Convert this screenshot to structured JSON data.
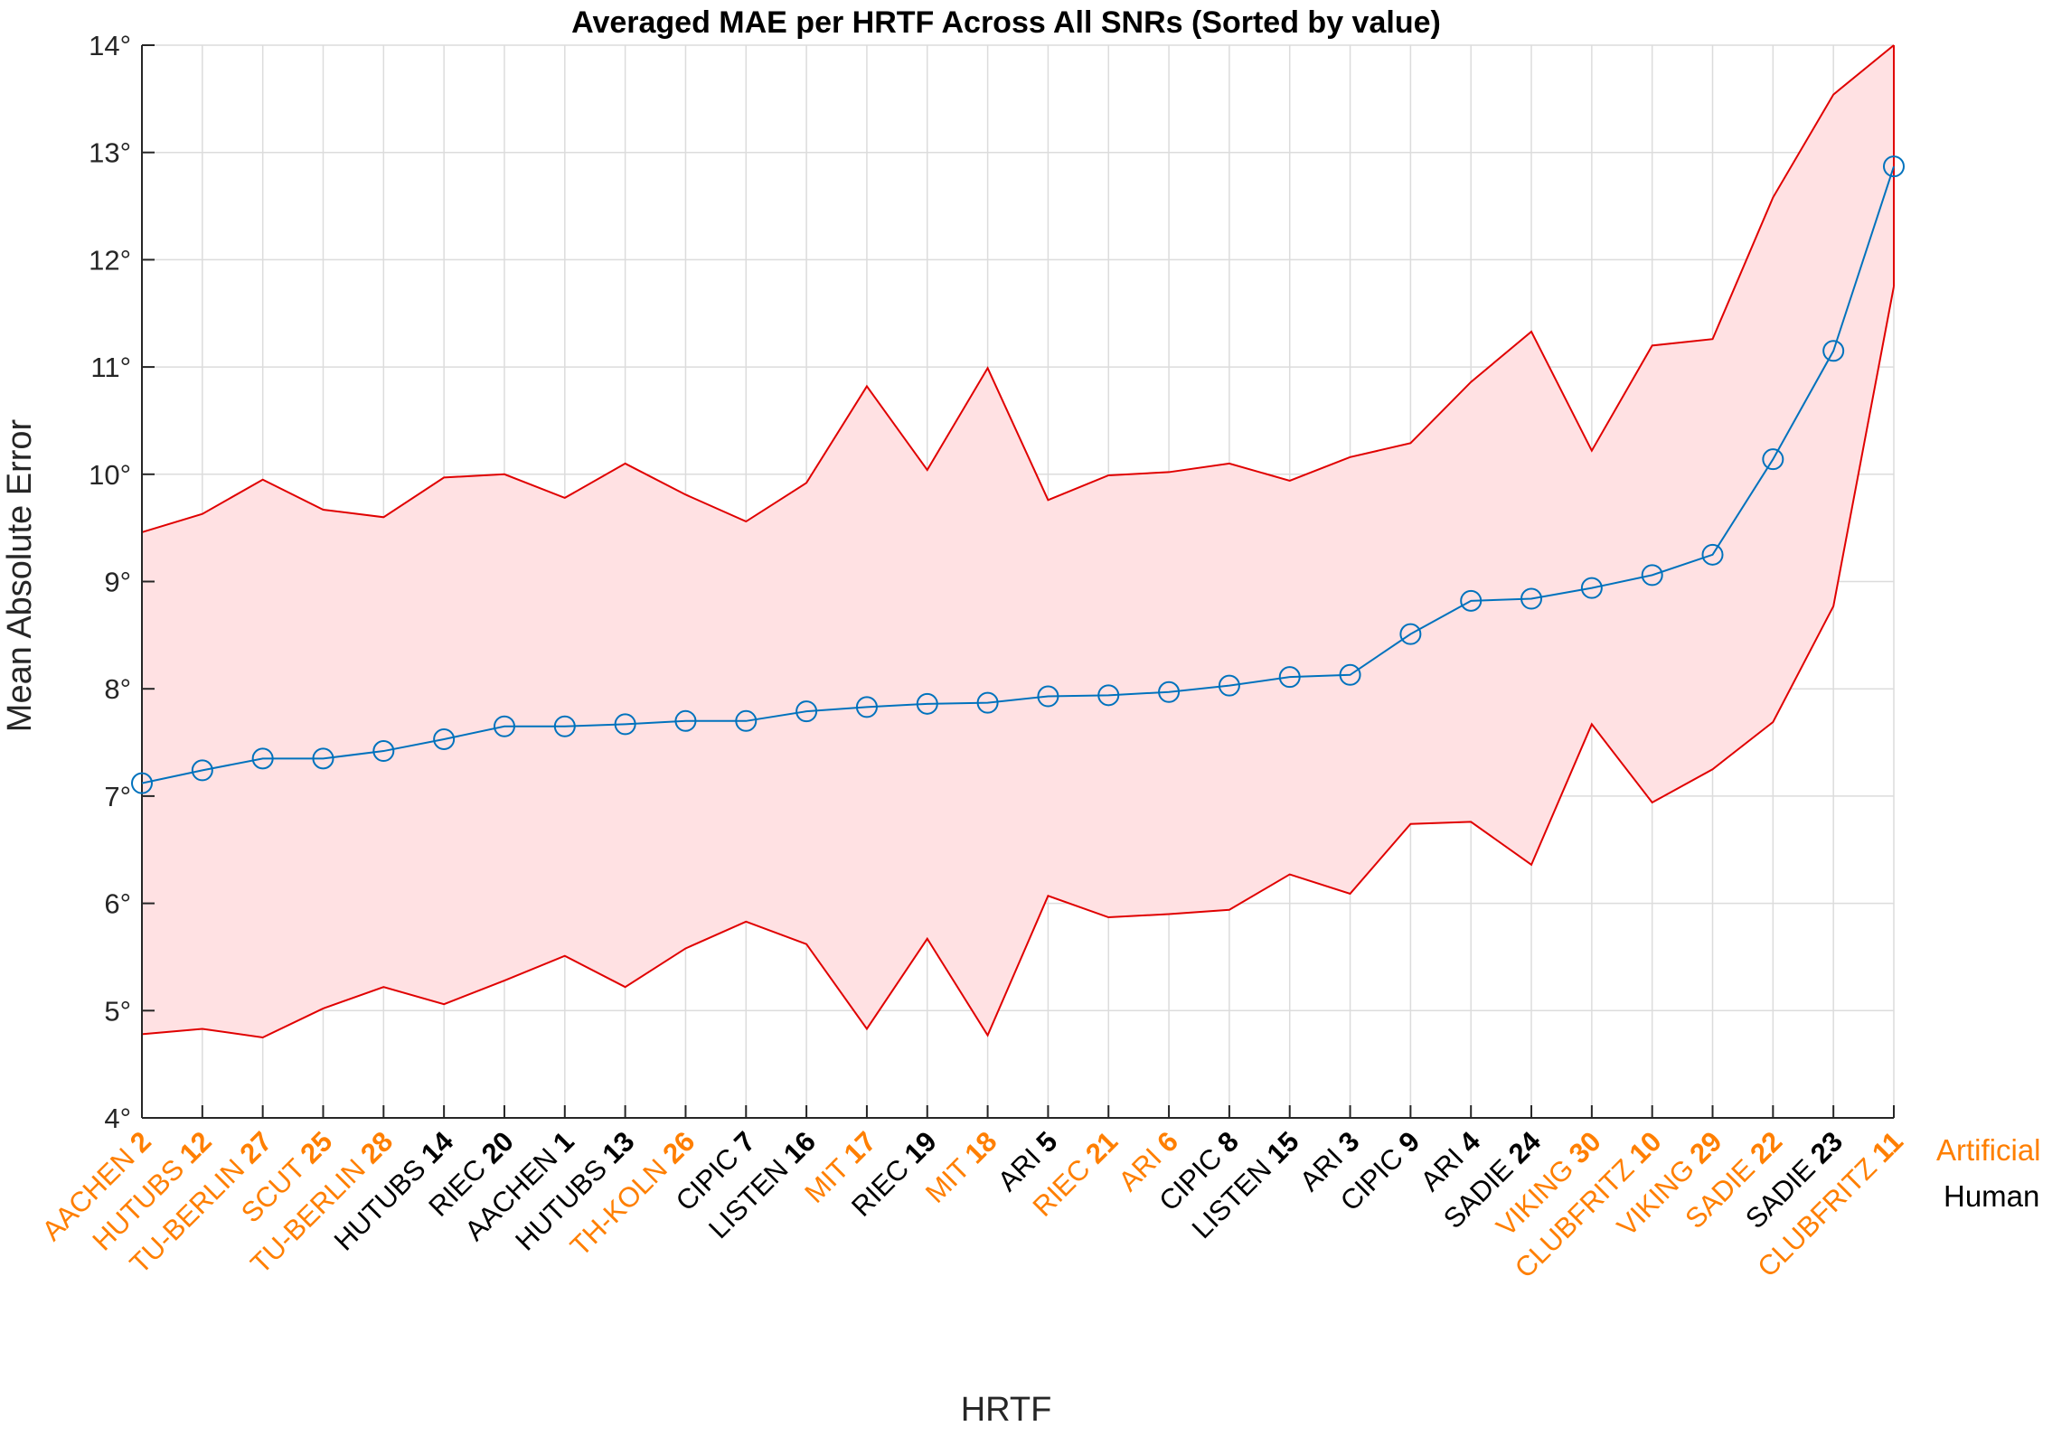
{
  "chart_data": {
    "type": "line",
    "title": "Averaged MAE per HRTF Across All SNRs (Sorted by value)",
    "xlabel": "HRTF",
    "ylabel": "Mean Absolute Error",
    "ylim": [
      4,
      14
    ],
    "yticks": [
      4,
      5,
      6,
      7,
      8,
      9,
      10,
      11,
      12,
      13,
      14
    ],
    "ytick_suffix": "°",
    "grid": true,
    "categories": [
      {
        "name": "AACHEN",
        "id": "2",
        "group": "Artificial"
      },
      {
        "name": "HUTUBS",
        "id": "12",
        "group": "Artificial"
      },
      {
        "name": "TU-BERLIN",
        "id": "27",
        "group": "Artificial"
      },
      {
        "name": "SCUT",
        "id": "25",
        "group": "Artificial"
      },
      {
        "name": "TU-BERLIN",
        "id": "28",
        "group": "Artificial"
      },
      {
        "name": "HUTUBS",
        "id": "14",
        "group": "Human"
      },
      {
        "name": "RIEC",
        "id": "20",
        "group": "Human"
      },
      {
        "name": "AACHEN",
        "id": "1",
        "group": "Human"
      },
      {
        "name": "HUTUBS",
        "id": "13",
        "group": "Human"
      },
      {
        "name": "TH-KOLN",
        "id": "26",
        "group": "Artificial"
      },
      {
        "name": "CIPIC",
        "id": "7",
        "group": "Human"
      },
      {
        "name": "LISTEN",
        "id": "16",
        "group": "Human"
      },
      {
        "name": "MIT",
        "id": "17",
        "group": "Artificial"
      },
      {
        "name": "RIEC",
        "id": "19",
        "group": "Human"
      },
      {
        "name": "MIT",
        "id": "18",
        "group": "Artificial"
      },
      {
        "name": "ARI",
        "id": "5",
        "group": "Human"
      },
      {
        "name": "RIEC",
        "id": "21",
        "group": "Artificial"
      },
      {
        "name": "ARI",
        "id": "6",
        "group": "Artificial"
      },
      {
        "name": "CIPIC",
        "id": "8",
        "group": "Human"
      },
      {
        "name": "LISTEN",
        "id": "15",
        "group": "Human"
      },
      {
        "name": "ARI",
        "id": "3",
        "group": "Human"
      },
      {
        "name": "CIPIC",
        "id": "9",
        "group": "Human"
      },
      {
        "name": "ARI",
        "id": "4",
        "group": "Human"
      },
      {
        "name": "SADIE",
        "id": "24",
        "group": "Human"
      },
      {
        "name": "VIKING",
        "id": "30",
        "group": "Artificial"
      },
      {
        "name": "CLUBFRITZ",
        "id": "10",
        "group": "Artificial"
      },
      {
        "name": "VIKING",
        "id": "29",
        "group": "Artificial"
      },
      {
        "name": "SADIE",
        "id": "22",
        "group": "Artificial"
      },
      {
        "name": "SADIE",
        "id": "23",
        "group": "Human"
      },
      {
        "name": "CLUBFRITZ",
        "id": "11",
        "group": "Artificial"
      }
    ],
    "series": [
      {
        "values": [
          7.12,
          7.24,
          7.35,
          7.35,
          7.42,
          7.53,
          7.65,
          7.65,
          7.67,
          7.7,
          7.7,
          7.79,
          7.83,
          7.86,
          7.87,
          7.93,
          7.94,
          7.97,
          8.03,
          8.11,
          8.13,
          8.51,
          8.82,
          8.84,
          8.94,
          9.06,
          9.25,
          10.14,
          11.15,
          12.87
        ]
      }
    ],
    "band_upper": [
      9.46,
      9.63,
      9.95,
      9.67,
      9.6,
      9.97,
      10.0,
      9.78,
      10.1,
      9.81,
      9.56,
      9.92,
      10.82,
      10.04,
      10.99,
      9.76,
      9.99,
      10.02,
      10.1,
      9.94,
      10.16,
      10.29,
      10.86,
      11.33,
      10.22,
      11.2,
      11.26,
      12.58,
      13.54,
      14.0
    ],
    "band_lower": [
      4.78,
      4.83,
      4.75,
      5.02,
      5.22,
      5.06,
      5.28,
      5.51,
      5.22,
      5.58,
      5.83,
      5.62,
      4.83,
      5.67,
      4.77,
      6.07,
      5.87,
      5.9,
      5.94,
      6.27,
      6.09,
      6.74,
      6.76,
      6.36,
      7.67,
      6.94,
      7.25,
      7.69,
      8.77,
      11.75
    ],
    "colors": {
      "line": "#0072BD",
      "band_fill": "#FFE1E3",
      "band_edge": "#E00000",
      "artificial": "#FF7F00",
      "human": "#000000"
    },
    "legend": {
      "position": "right",
      "entries": [
        {
          "label": "Artificial",
          "color": "#FF7F00"
        },
        {
          "label": "Human",
          "color": "#000000"
        }
      ]
    }
  }
}
